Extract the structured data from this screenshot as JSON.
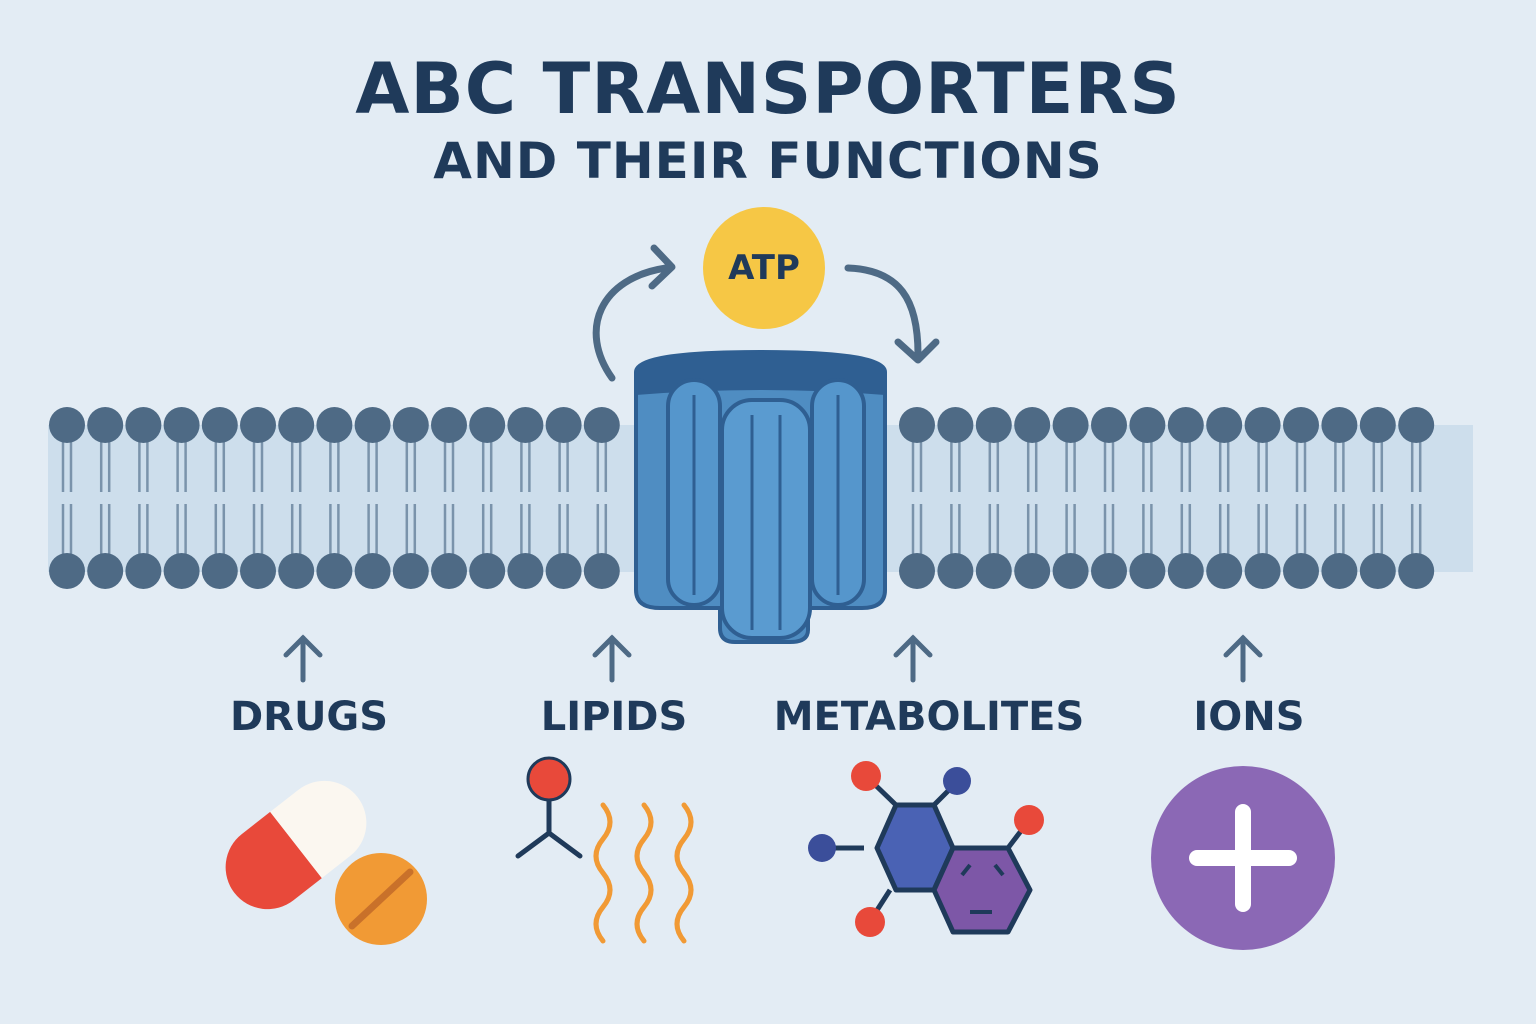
{
  "title": {
    "line1": "ABC TRANSPORTERS",
    "line2": "AND THEIR FUNCTIONS"
  },
  "atp": {
    "label": "ATP",
    "color": "#f6c745"
  },
  "colors": {
    "background": "#e3ecf4",
    "lipid_head": "#4e6a85",
    "lipid_band": "#c9dbea",
    "transporter": "#4f8dc2",
    "transporter_dark": "#2f5f92",
    "text": "#1f3a5a"
  },
  "categories": [
    {
      "label": "DRUGS",
      "icon": "pills-icon"
    },
    {
      "label": "LIPIDS",
      "icon": "lipid-icon"
    },
    {
      "label": "METABOLITES",
      "icon": "molecule-icon"
    },
    {
      "label": "IONS",
      "icon": "plus-ion-icon"
    }
  ]
}
